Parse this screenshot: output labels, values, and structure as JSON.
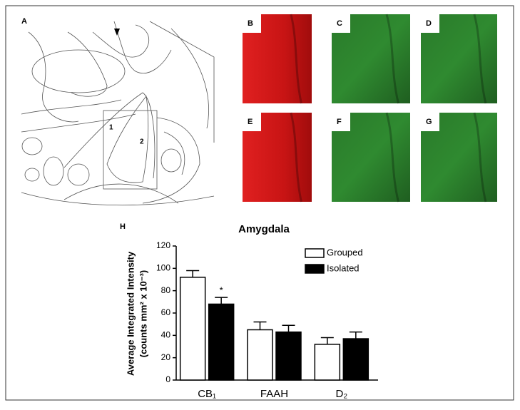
{
  "panel_labels": [
    "A",
    "B",
    "C",
    "D",
    "E",
    "F",
    "G"
  ],
  "region_labels": [
    "1",
    "2"
  ],
  "chart_data": {
    "type": "bar",
    "panel_label": "H",
    "title": "Amygdala",
    "y_label": [
      "Average Integrated Intensity",
      "(counts mm² x 10⁻³)"
    ],
    "categories": [
      "CB₁",
      "FAAH",
      "D₂"
    ],
    "series": [
      {
        "name": "Grouped",
        "color": "#ffffff",
        "values": [
          92,
          45,
          32
        ],
        "errors": [
          6,
          7,
          6
        ]
      },
      {
        "name": "Isolated",
        "color": "#000000",
        "values": [
          68,
          43,
          37
        ],
        "errors": [
          6,
          6,
          6
        ]
      }
    ],
    "annotations": [
      "*"
    ],
    "ylim": [
      0,
      120
    ],
    "yticks": [
      0,
      20,
      40,
      60,
      80,
      100,
      120
    ]
  }
}
